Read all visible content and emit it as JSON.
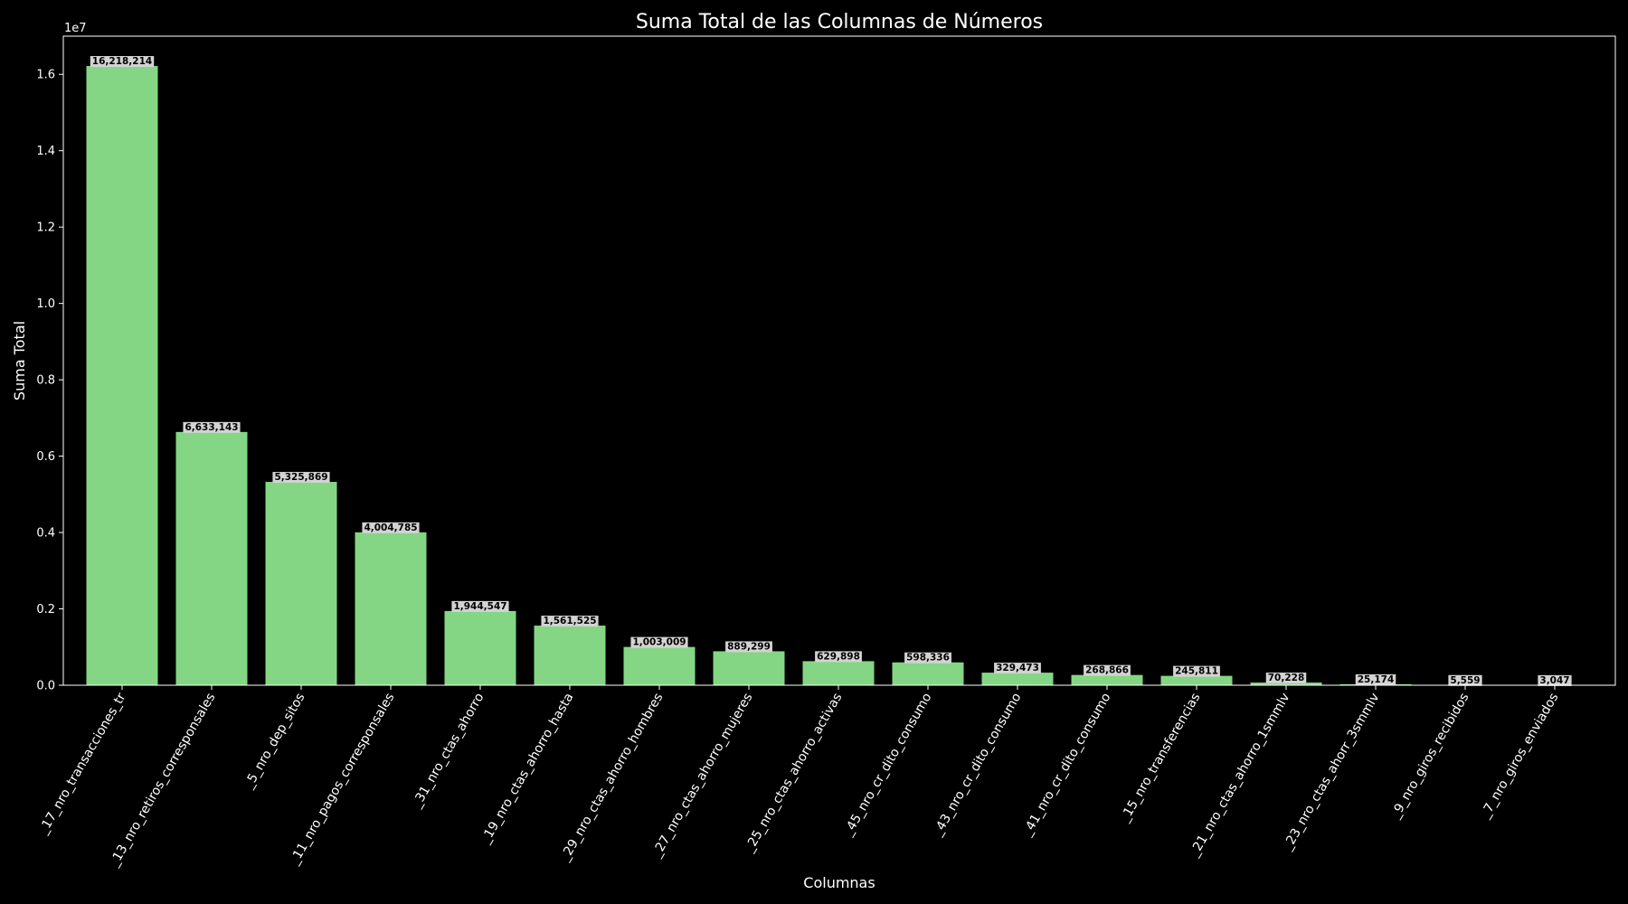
{
  "chart_data": {
    "type": "bar",
    "title": "Suma Total de las Columnas de Números",
    "xlabel": "Columnas",
    "ylabel": "Suma Total",
    "y_offset_label": "1e7",
    "ylim": [
      0,
      17000000
    ],
    "y_ticks": [
      0,
      2000000,
      4000000,
      6000000,
      8000000,
      10000000,
      12000000,
      14000000,
      16000000
    ],
    "y_tick_labels": [
      "0.0",
      "0.2",
      "0.4",
      "0.6",
      "0.8",
      "1.0",
      "1.2",
      "1.4",
      "1.6"
    ],
    "grid": false,
    "categories": [
      "_17_nro_transacciones_tr",
      "_13_nro_retiros_corresponsales",
      "_5_nro_dep_sitos",
      "_11_nro_pagos_corresponsales",
      "_31_nro_ctas_ahorro",
      "_19_nro_ctas_ahorro_hasta",
      "_29_nro_ctas_ahorro_hombres",
      "_27_nro_ctas_ahorro_mujeres",
      "_25_nro_ctas_ahorro_activas",
      "_45_nro_cr_dito_consumo",
      "_43_nro_cr_dito_consumo",
      "_41_nro_cr_dito_consumo",
      "_15_nro_transferencias",
      "_21_nro_ctas_ahorro_1smmlv",
      "_23_nro_ctas_ahorr_3smmlv",
      "_9_nro_giros_recibidos",
      "_7_nro_giros_enviados"
    ],
    "values": [
      16218214,
      6633143,
      5325869,
      4004785,
      1944547,
      1561525,
      1003009,
      889299,
      629898,
      598336,
      329473,
      268866,
      245811,
      70228,
      25174,
      5559,
      3047
    ],
    "value_labels": [
      "16,218,214",
      "6,633,143",
      "5,325,869",
      "4,004,785",
      "1,944,547",
      "1,561,525",
      "1,003,009",
      "889,299",
      "629,898",
      "598,336",
      "329,473",
      "268,866",
      "245,811",
      "70,228",
      "25,174",
      "5,559",
      "3,047"
    ],
    "colors": {
      "background": "#000000",
      "bar": "#84d684",
      "axis": "#ffffff",
      "text": "#ffffff",
      "label_box": "#d3d3d3",
      "label_text": "#000000"
    }
  }
}
